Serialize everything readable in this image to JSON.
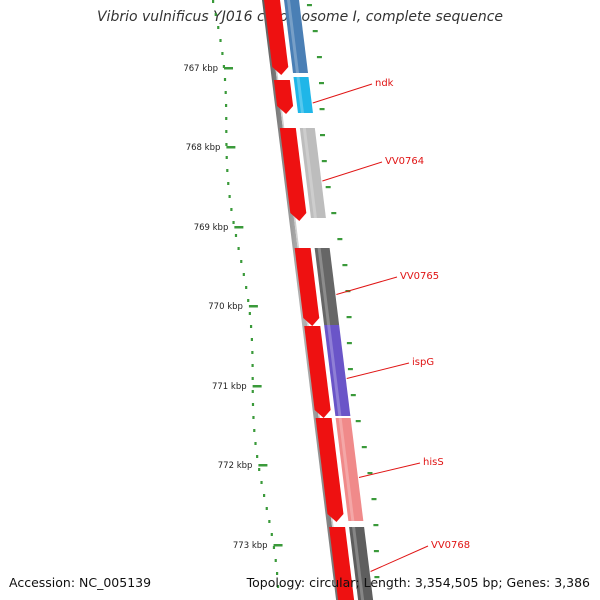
{
  "title": "Vibrio vulnificus YJ016 chromosome I, complete sequence",
  "accession": "Accession: NC_005139",
  "summary": "Topology: circular; Length: 3,354,505 bp; Genes: 3,386",
  "ticks": [
    {
      "label": "767 kbp"
    },
    {
      "label": "768 kbp"
    },
    {
      "label": "769 kbp"
    },
    {
      "label": "770 kbp"
    },
    {
      "label": "771 kbp"
    },
    {
      "label": "772 kbp"
    },
    {
      "label": "773 kbp"
    }
  ],
  "genes": [
    {
      "label": "",
      "color": "#4a7fb5"
    },
    {
      "label": "ndk",
      "color": "#1fb6e8"
    },
    {
      "label": "VV0764",
      "color": "#bdbdbd"
    },
    {
      "label": "VV0765",
      "color": "#666666"
    },
    {
      "label": "ispG",
      "color": "#6a55c8"
    },
    {
      "label": "hisS",
      "color": "#f08a8a"
    },
    {
      "label": "VV0768",
      "color": "#5e5e5e"
    }
  ],
  "colors": {
    "cds": "#ee1111",
    "backbone": "#7a7a7a",
    "label_line": "#e01515",
    "tick": "#3a9a3a"
  }
}
